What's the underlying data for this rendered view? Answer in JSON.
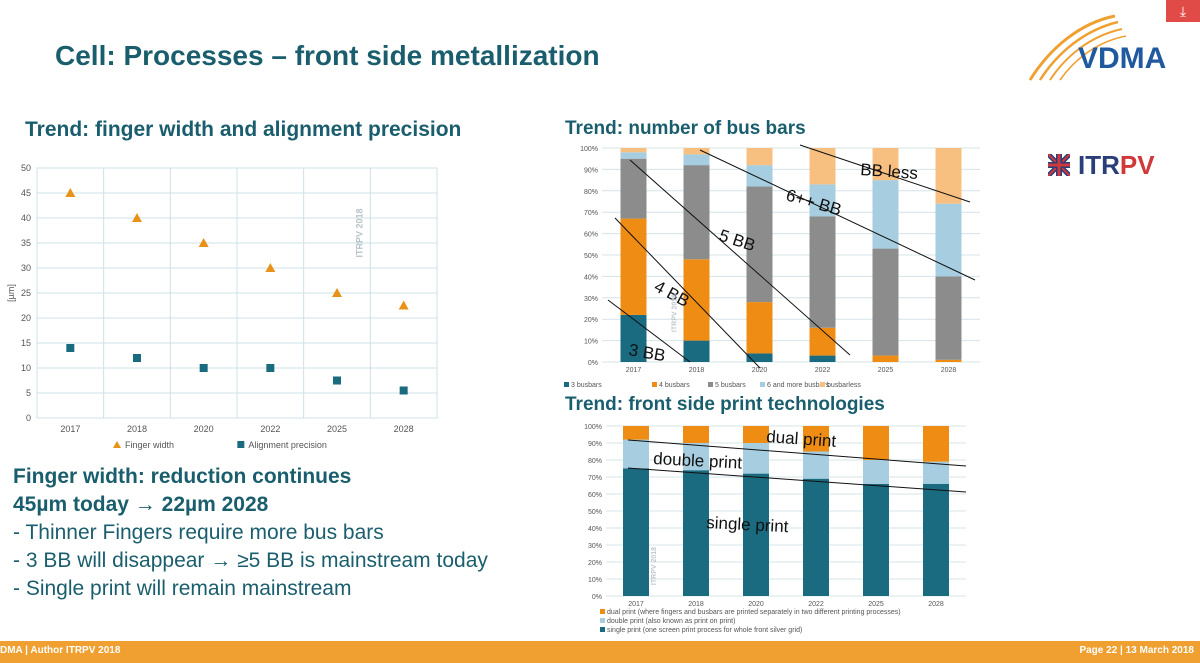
{
  "header": {
    "title": "Cell: Processes – front side metallization",
    "corner_icon": "export-icon"
  },
  "logo": {
    "text": "VDMA",
    "color": "#1f5aa0",
    "arc_color": "#f0a030"
  },
  "itrpv_logo": {
    "part1": "ITR",
    "part2": "PV"
  },
  "chart1": {
    "subtitle": "Trend: finger width and alignment precision"
  },
  "chart2": {
    "subtitle": "Trend: number of bus bars"
  },
  "chart3": {
    "subtitle": "Trend: front side print technologies"
  },
  "bullets": {
    "line1": "Finger width: reduction continues",
    "line2": "45µm today → 22µm 2028",
    "line3": "- Thinner Fingers require more bus bars",
    "line4": "-    3 BB will disappear → ≥5 BB is mainstream today",
    "line5": "-    Single print will remain mainstream"
  },
  "footer": {
    "left": "DMA | Author ITRPV 2018",
    "right": "Page 22 | 13 March 2018"
  },
  "chart_data": [
    {
      "type": "scatter",
      "categories": [
        "2017",
        "2018",
        "2020",
        "2022",
        "2025",
        "2028"
      ],
      "series": [
        {
          "name": "Finger width",
          "values": [
            45,
            40,
            35,
            30,
            25,
            22.5
          ],
          "color": "#e8921a",
          "marker": "triangle"
        },
        {
          "name": "Alignment precision",
          "values": [
            14,
            12,
            10,
            10,
            7.5,
            5.5
          ],
          "color": "#1a6a80",
          "marker": "square"
        }
      ],
      "ylabel": "[µm]",
      "ylim": [
        0,
        50
      ],
      "yticks": [
        "0",
        "5",
        "10",
        "15",
        "20",
        "25",
        "30",
        "35",
        "40",
        "45",
        "50"
      ],
      "watermark": "ITRPV 2018",
      "grid": true,
      "legend": "bottom"
    },
    {
      "type": "bar",
      "stacked": true,
      "categories": [
        "2017",
        "2018",
        "2020",
        "2022",
        "2025",
        "2028"
      ],
      "yticks": [
        "0%",
        "10%",
        "20%",
        "30%",
        "40%",
        "50%",
        "60%",
        "70%",
        "80%",
        "90%",
        "100%"
      ],
      "series": [
        {
          "name": "3 busbars",
          "values": [
            22,
            10,
            4,
            3,
            0,
            0
          ],
          "color": "#1a6a80"
        },
        {
          "name": "4 busbars",
          "values": [
            45,
            38,
            24,
            13,
            3,
            1
          ],
          "color": "#ef8c14"
        },
        {
          "name": "5 busbars",
          "values": [
            28,
            44,
            54,
            52,
            50,
            39
          ],
          "color": "#8c8c8c"
        },
        {
          "name": "6 and more busbars",
          "values": [
            3,
            5,
            10,
            15,
            32,
            34
          ],
          "color": "#a6cde0"
        },
        {
          "name": "busbarless",
          "values": [
            2,
            3,
            8,
            17,
            15,
            26
          ],
          "color": "#f8c080"
        }
      ],
      "annotations": [
        "BB less",
        "6++ BB",
        "5 BB",
        "4 BB",
        "3 BB"
      ],
      "watermark": "ITRPV 2018",
      "legend": "bottom"
    },
    {
      "type": "bar",
      "stacked": true,
      "categories": [
        "2017",
        "2018",
        "2020",
        "2022",
        "2025",
        "2028"
      ],
      "yticks": [
        "0%",
        "10%",
        "20%",
        "30%",
        "40%",
        "50%",
        "60%",
        "70%",
        "80%",
        "90%",
        "100%"
      ],
      "series": [
        {
          "name": "single print (one screen print process for whole front silver grid)",
          "values": [
            75,
            74,
            72,
            69,
            66,
            66
          ],
          "color": "#1a6a80"
        },
        {
          "name": "double print (also known as print on print)",
          "values": [
            17,
            16,
            18,
            16,
            14,
            13
          ],
          "color": "#a6cde0"
        },
        {
          "name": "dual print (where fingers and busbars are printed separately in two different printing processes)",
          "values": [
            8,
            10,
            10,
            15,
            20,
            21
          ],
          "color": "#ef8c14"
        }
      ],
      "annotations": [
        "dual print",
        "double print",
        "single print"
      ],
      "watermark": "ITRPV 2018",
      "legend": "bottom"
    }
  ]
}
